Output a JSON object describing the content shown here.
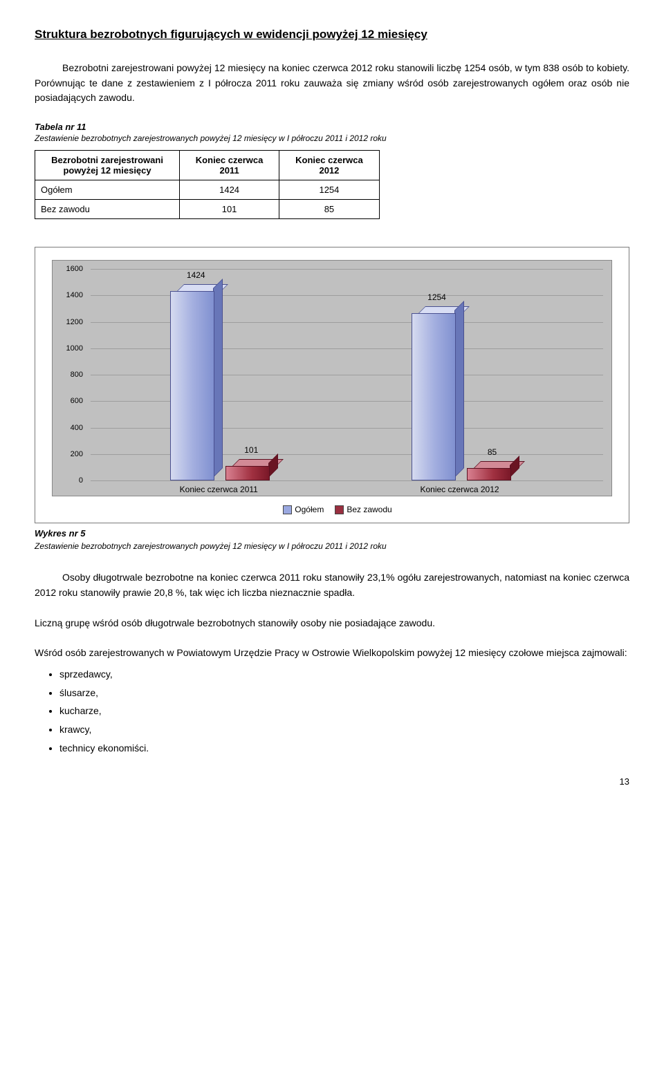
{
  "heading": "Struktura bezrobotnych figurujących w ewidencji powyżej 12 miesięcy",
  "paragraph1": "Bezrobotni zarejestrowani powyżej 12 miesięcy na koniec czerwca 2012 roku stanowili liczbę 1254 osób, w tym 838 osób to kobiety. Porównując  te dane z zestawieniem z I półrocza 2011 roku zauważa się zmiany wśród osób zarejestrowanych ogółem oraz osób nie posiadających zawodu.",
  "table_caption_title": "Tabela nr 11",
  "table_caption_desc": "Zestawienie bezrobotnych zarejestrowanych powyżej 12 miesięcy w I  półroczu 2011 i 2012 roku",
  "table": {
    "col0": "Bezrobotni zarejestrowani powyżej 12 miesięcy",
    "col1": "Koniec czerwca 2011",
    "col2": "Koniec czerwca 2012",
    "rows": [
      {
        "label": "Ogółem",
        "c2011": "1424",
        "c2012": "1254"
      },
      {
        "label": "Bez zawodu",
        "c2011": "101",
        "c2012": "85"
      }
    ]
  },
  "chart": {
    "ylim": [
      0,
      1600
    ],
    "ytick_step": 200,
    "yticks": [
      "0",
      "200",
      "400",
      "600",
      "800",
      "1000",
      "1200",
      "1400",
      "1600"
    ],
    "groups": [
      {
        "label": "Koniec czerwca 2011",
        "bars": [
          {
            "series": "ogolem",
            "value": 1424,
            "label": "1424"
          },
          {
            "series": "bez",
            "value": 101,
            "label": "101"
          }
        ]
      },
      {
        "label": "Koniec czerwca 2012",
        "bars": [
          {
            "series": "ogolem",
            "value": 1254,
            "label": "1254"
          },
          {
            "series": "bez",
            "value": 85,
            "label": "85"
          }
        ]
      }
    ],
    "series_colors": {
      "ogolem": "#9aa8e0",
      "bez": "#992f40"
    },
    "legend": [
      {
        "label": "Ogółem",
        "color": "#9aa8e0"
      },
      {
        "label": "Bez zawodu",
        "color": "#992f40"
      }
    ]
  },
  "wykres_caption_title": "Wykres nr 5",
  "wykres_caption_desc": "Zestawienie bezrobotnych zarejestrowanych powyżej 12 miesięcy w I półroczu 2011 i 2012 roku",
  "paragraph2": "Osoby długotrwale bezrobotne na koniec czerwca 2011 roku stanowiły 23,1% ogółu zarejestrowanych, natomiast na koniec czerwca 2012 roku stanowiły prawie 20,8 %, tak więc ich liczba nieznacznie spadła.",
  "paragraph3": "Liczną grupę wśród osób długotrwale bezrobotnych stanowiły osoby nie posiadające zawodu.",
  "paragraph4": "Wśród osób zarejestrowanych w Powiatowym Urzędzie Pracy w Ostrowie Wielkopolskim powyżej 12 miesięcy czołowe miejsca zajmowali:",
  "bullets": [
    "sprzedawcy,",
    "ślusarze,",
    "kucharze,",
    "krawcy,",
    "technicy ekonomiści."
  ],
  "page_number": "13"
}
